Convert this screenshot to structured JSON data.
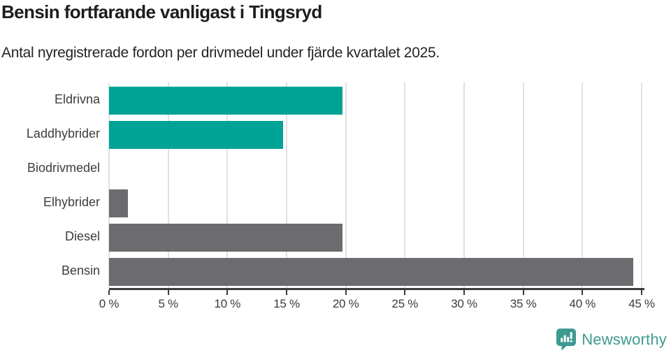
{
  "header": {
    "title": "Bensin fortfarande vanligast i Tingsryd",
    "subtitle": "Antal nyregistrerade fordon per drivmedel under fjärde kvartalet 2025."
  },
  "chart_data": {
    "type": "bar",
    "orientation": "horizontal",
    "title": "Bensin fortfarande vanligast i Tingsryd",
    "subtitle": "Antal nyregistrerade fordon per drivmedel under fjärde kvartalet 2025.",
    "categories": [
      "Eldrivna",
      "Laddhybrider",
      "Biodrivmedel",
      "Elhybrider",
      "Diesel",
      "Bensin"
    ],
    "values": [
      19.7,
      14.7,
      0,
      1.6,
      19.7,
      44.3
    ],
    "unit": "%",
    "xlabel": "",
    "ylabel": "",
    "xlim": [
      0,
      45
    ],
    "x_ticks": [
      0,
      5,
      10,
      15,
      20,
      25,
      30,
      35,
      40,
      45
    ],
    "x_tick_labels": [
      "0 %",
      "5 %",
      "10 %",
      "15 %",
      "20 %",
      "25 %",
      "30 %",
      "35 %",
      "40 %",
      "45 %"
    ],
    "grid": true,
    "legend": false,
    "bar_colors": [
      "#00a396",
      "#00a396",
      "#6c6c70",
      "#6c6c70",
      "#6c6c70",
      "#6c6c70"
    ]
  },
  "colors": {
    "accent_teal": "#00a396",
    "bar_gray": "#6c6c70",
    "gridline": "#e1e1e1",
    "axis": "#3b3b3b",
    "label_text": "#3d3d3d",
    "title_text": "#1d1d1d",
    "logo_teal": "#3e9a90"
  },
  "footer": {
    "brand_name": "Newsworthy",
    "logo_icon": "bar-chart-speech-bubble"
  }
}
